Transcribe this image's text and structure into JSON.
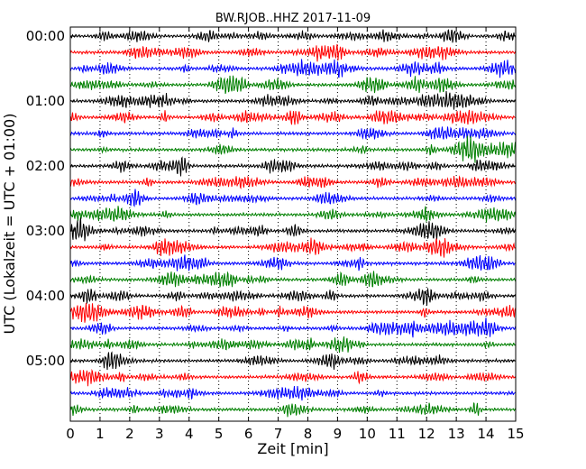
{
  "chart_data": {
    "type": "line",
    "title": "BW.RJOB..HHZ 2017-11-09",
    "xlabel": "Zeit  [min]",
    "ylabel": "UTC (Lokalzeit = UTC + 01:00)",
    "xlim": [
      0,
      15
    ],
    "x_ticks": [
      "0",
      "1",
      "2",
      "3",
      "4",
      "5",
      "6",
      "7",
      "8",
      "9",
      "10",
      "11",
      "12",
      "13",
      "14",
      "15"
    ],
    "y_tick_labels": [
      "00:00",
      "01:00",
      "02:00",
      "03:00",
      "04:00",
      "05:00"
    ],
    "grid": "vertical-dotted",
    "trace_interval_minutes": 15,
    "trace_count": 24,
    "trace_colors": [
      "#000000",
      "#ff0000",
      "#0000ff",
      "#008000"
    ],
    "traces": [
      {
        "start": "00:00"
      },
      {
        "start": "00:15"
      },
      {
        "start": "00:30"
      },
      {
        "start": "00:45"
      },
      {
        "start": "01:00"
      },
      {
        "start": "01:15"
      },
      {
        "start": "01:30"
      },
      {
        "start": "01:45"
      },
      {
        "start": "02:00"
      },
      {
        "start": "02:15"
      },
      {
        "start": "02:30"
      },
      {
        "start": "02:45"
      },
      {
        "start": "03:00"
      },
      {
        "start": "03:15"
      },
      {
        "start": "03:30"
      },
      {
        "start": "03:45"
      },
      {
        "start": "04:00"
      },
      {
        "start": "04:15"
      },
      {
        "start": "04:30"
      },
      {
        "start": "04:45"
      },
      {
        "start": "05:00"
      },
      {
        "start": "05:15"
      },
      {
        "start": "05:30"
      },
      {
        "start": "05:45"
      }
    ]
  }
}
